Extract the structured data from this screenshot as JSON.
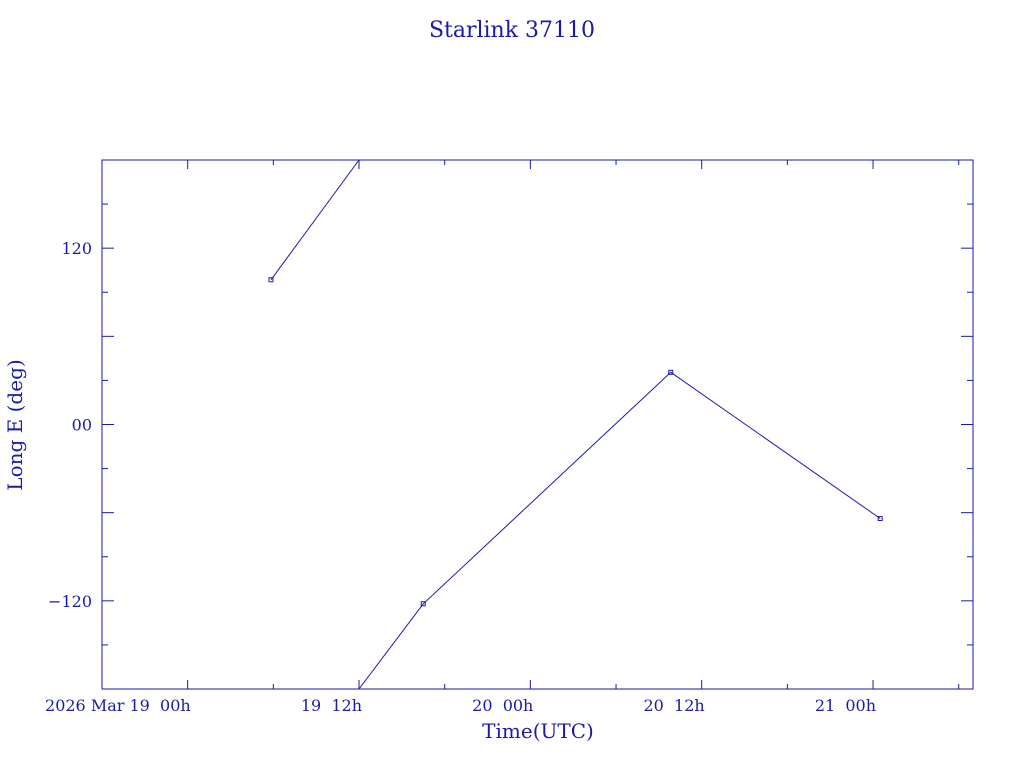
{
  "chart_data": {
    "type": "line",
    "title": "Starlink 37110",
    "xlabel": "Time(UTC)",
    "ylabel": "Long E (deg)",
    "x_range": [
      "2026-03-18T18:00",
      "2026-03-21T07:00"
    ],
    "ylim": [
      -180,
      180
    ],
    "x_ticks": [
      {
        "t": "2026-03-19T00:00",
        "label": "2026 Mar 19   00h"
      },
      {
        "t": "2026-03-19T12:00",
        "label": "19  12h"
      },
      {
        "t": "2026-03-20T00:00",
        "label": "20  00h"
      },
      {
        "t": "2026-03-20T12:00",
        "label": "20  12h"
      },
      {
        "t": "2026-03-21T00:00",
        "label": "21  00h"
      }
    ],
    "y_ticks": [
      {
        "v": 120,
        "label": "120"
      },
      {
        "v": 0,
        "label": "00"
      },
      {
        "v": -120,
        "label": "−120"
      }
    ],
    "series": [
      {
        "points": [
          {
            "t": "2026-03-19T05:50",
            "y": 98.5,
            "marker": true
          },
          {
            "t": "2026-03-19T12:00",
            "y": 180,
            "marker": false
          }
        ]
      },
      {
        "points": [
          {
            "t": "2026-03-19T12:00",
            "y": -180,
            "marker": false
          },
          {
            "t": "2026-03-19T16:30",
            "y": -122,
            "marker": true
          },
          {
            "t": "2026-03-20T09:50",
            "y": 35.5,
            "marker": true
          },
          {
            "t": "2026-03-21T00:30",
            "y": -64,
            "marker": true
          }
        ]
      }
    ],
    "grid": false,
    "color": "#1a1aa6"
  }
}
